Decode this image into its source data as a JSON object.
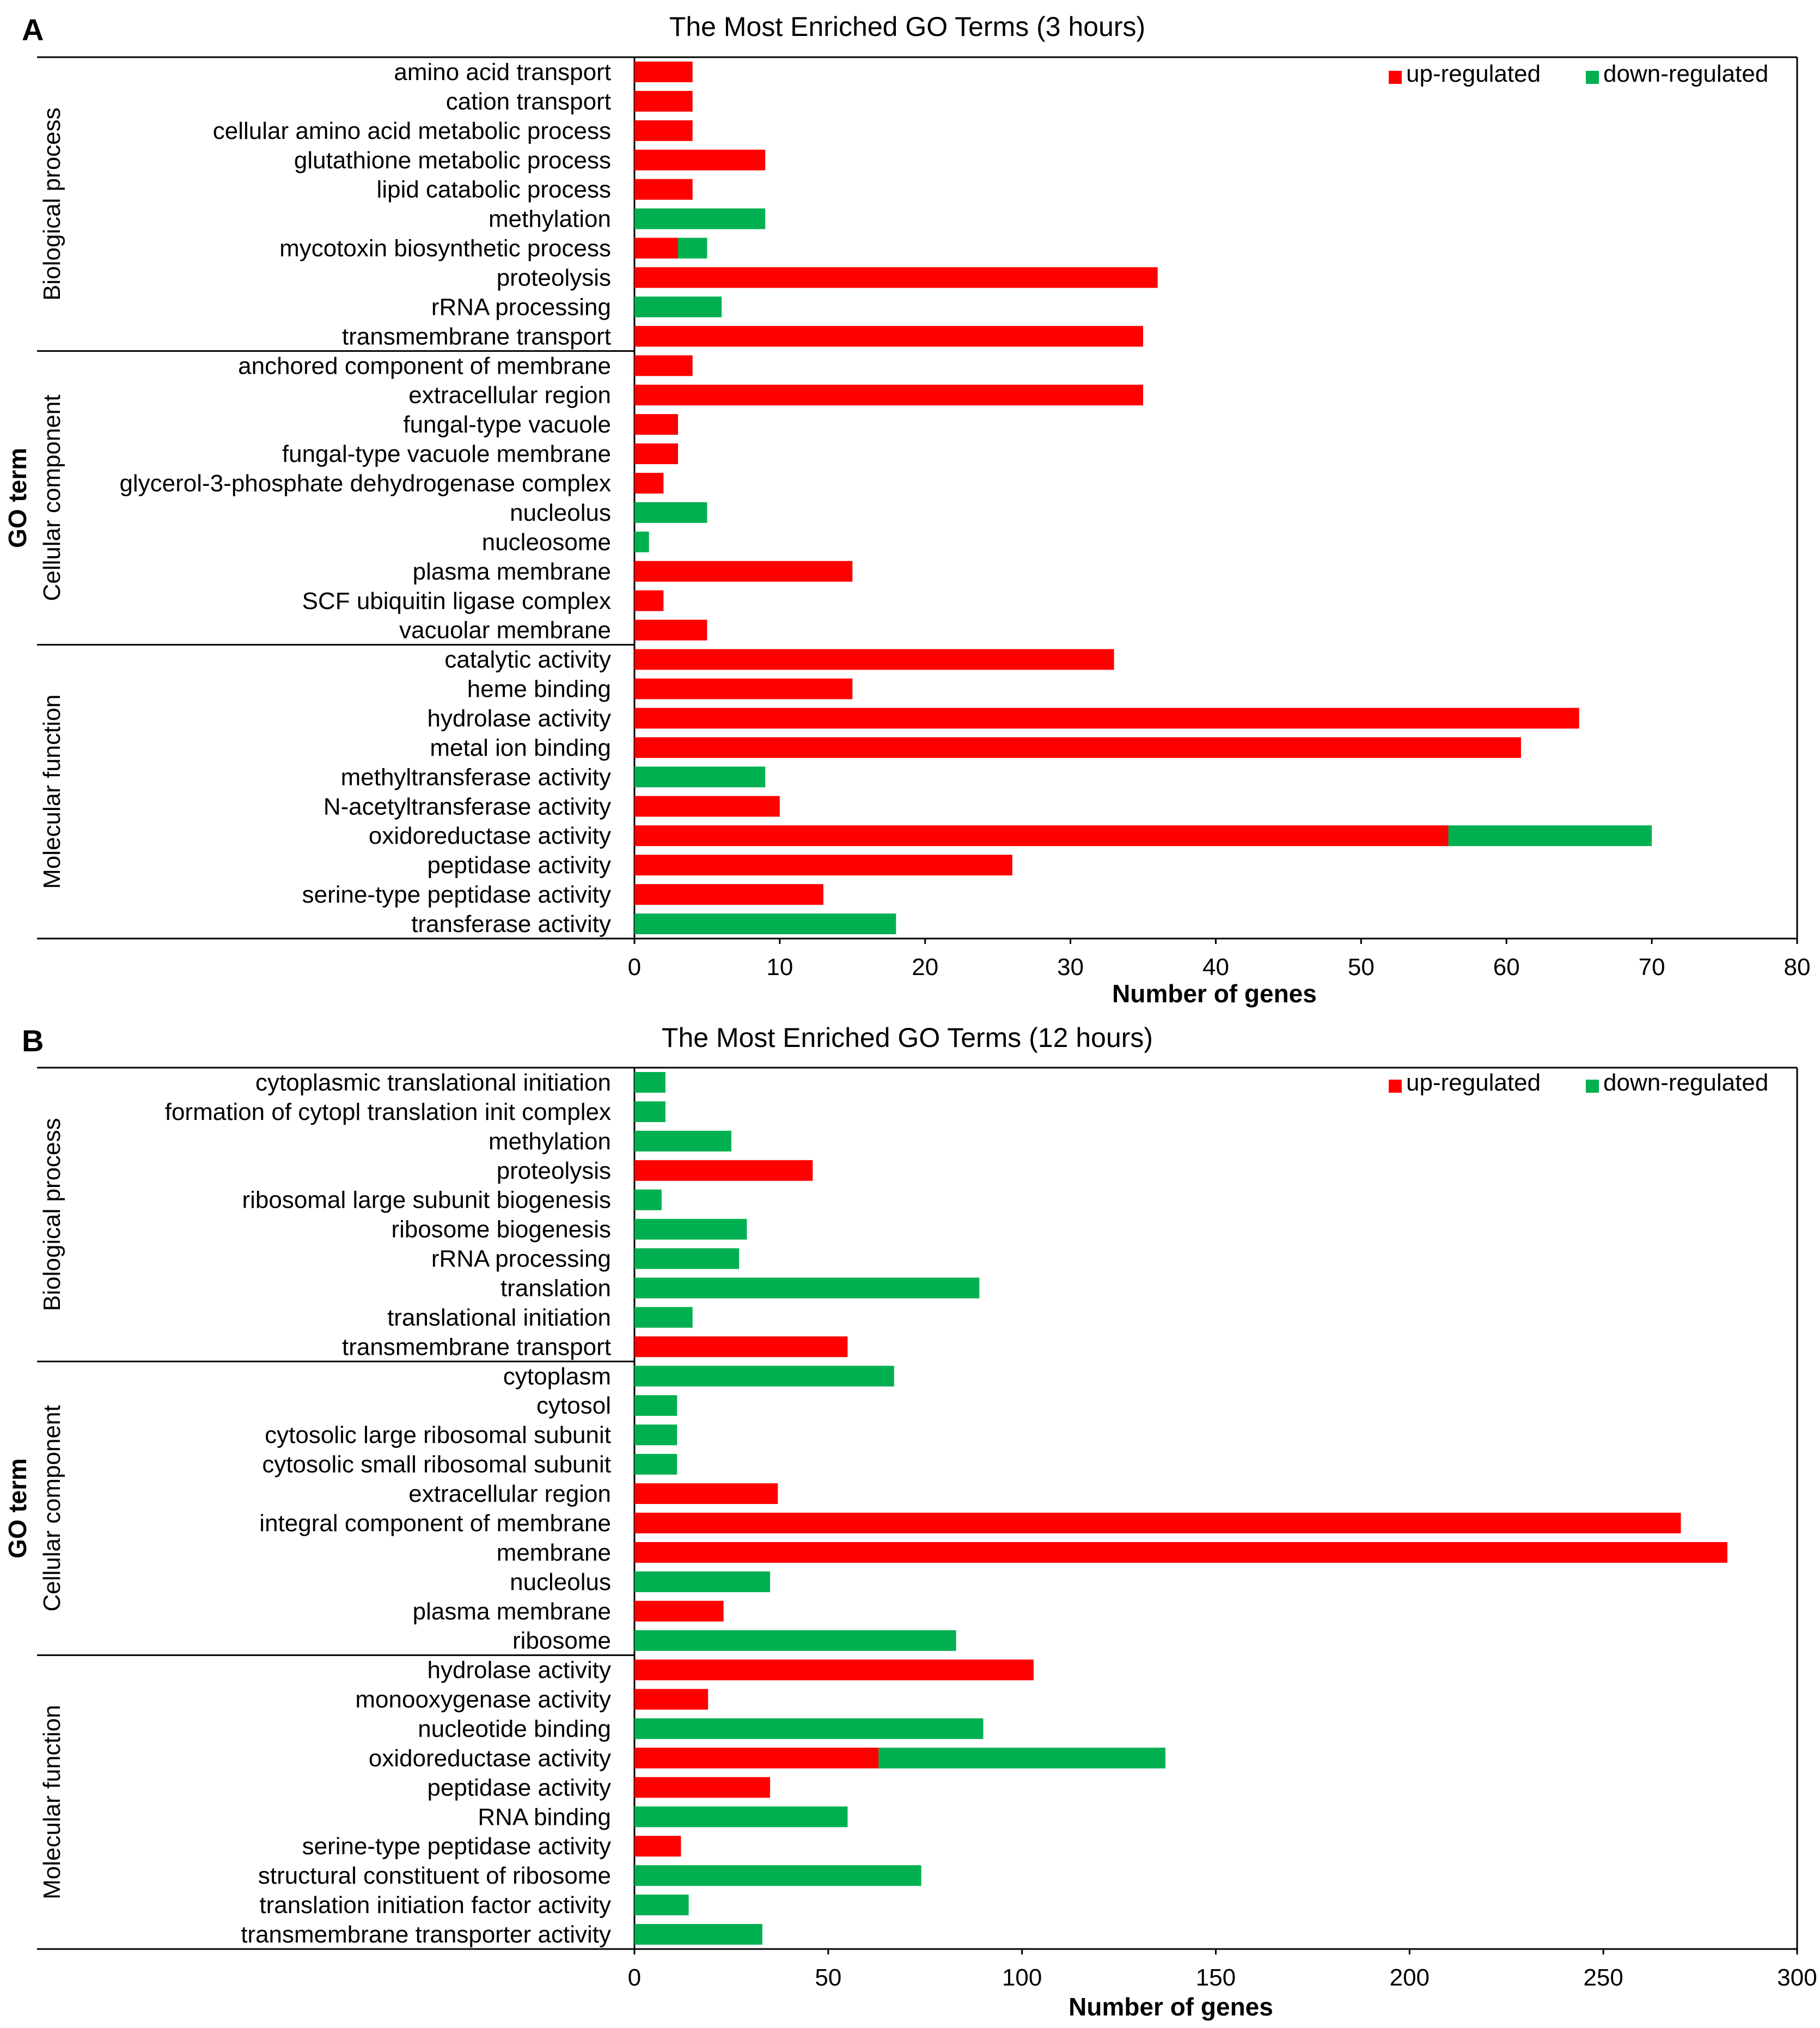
{
  "figure": {
    "colors": {
      "up": "#ff0000",
      "down": "#00b050",
      "axis": "#000000",
      "text": "#000000"
    }
  },
  "chart_data": [
    {
      "panel_label": "A",
      "type": "bar",
      "orientation": "horizontal",
      "stacked": true,
      "title": "The Most Enriched GO Terms (3 hours)",
      "xlabel": "Number of genes",
      "ylabel": "GO term",
      "xlim": [
        0,
        80
      ],
      "xticks": [
        0,
        10,
        20,
        30,
        40,
        50,
        60,
        70,
        80
      ],
      "grid": false,
      "legend_position": "top-right",
      "groups": [
        {
          "name": "Biological process",
          "count": 10
        },
        {
          "name": "Cellular component",
          "count": 10
        },
        {
          "name": "Molecular function",
          "count": 10
        }
      ],
      "categories": [
        "amino acid transport",
        "cation transport",
        "cellular amino acid metabolic process",
        "glutathione metabolic process",
        "lipid catabolic process",
        "methylation",
        "mycotoxin biosynthetic process",
        "proteolysis",
        "rRNA processing",
        "transmembrane transport",
        "anchored component of membrane",
        "extracellular region",
        "fungal-type vacuole",
        "fungal-type vacuole membrane",
        "glycerol-3-phosphate dehydrogenase complex",
        "nucleolus",
        "nucleosome",
        "plasma membrane",
        "SCF ubiquitin ligase complex",
        "vacuolar membrane",
        "catalytic activity",
        "heme binding",
        "hydrolase activity",
        "metal ion binding",
        "methyltransferase activity",
        "N-acetyltransferase activity",
        "oxidoreductase activity",
        "peptidase activity",
        "serine-type peptidase activity",
        "transferase activity"
      ],
      "series": [
        {
          "name": "up-regulated",
          "key": "up",
          "values": [
            4,
            4,
            4,
            9,
            4,
            0,
            3,
            36,
            0,
            35,
            4,
            35,
            3,
            3,
            2,
            0,
            0,
            15,
            2,
            5,
            33,
            15,
            65,
            61,
            0,
            10,
            56,
            26,
            13,
            0
          ]
        },
        {
          "name": "down-regulated",
          "key": "down",
          "values": [
            0,
            0,
            0,
            0,
            0,
            9,
            2,
            0,
            6,
            0,
            0,
            0,
            0,
            0,
            0,
            5,
            1,
            0,
            0,
            0,
            0,
            0,
            0,
            0,
            9,
            0,
            14,
            0,
            0,
            18
          ]
        }
      ]
    },
    {
      "panel_label": "B",
      "type": "bar",
      "orientation": "horizontal",
      "stacked": true,
      "title": "The Most Enriched GO Terms (12 hours)",
      "xlabel": "Number of genes",
      "ylabel": "GO term",
      "xlim": [
        0,
        300
      ],
      "xticks": [
        0,
        50,
        100,
        150,
        200,
        250,
        300
      ],
      "grid": false,
      "legend_position": "top-right",
      "groups": [
        {
          "name": "Biological process",
          "count": 10
        },
        {
          "name": "Cellular component",
          "count": 10
        },
        {
          "name": "Molecular function",
          "count": 10
        }
      ],
      "categories": [
        "cytoplasmic translational initiation",
        "formation of cytopl translation init complex",
        "methylation",
        "proteolysis",
        "ribosomal large subunit biogenesis",
        "ribosome biogenesis",
        "rRNA processing",
        "translation",
        "translational initiation",
        "transmembrane transport",
        "cytoplasm",
        "cytosol",
        "cytosolic large ribosomal subunit",
        "cytosolic small ribosomal subunit",
        "extracellular region",
        "integral component of membrane",
        "membrane",
        "nucleolus",
        "plasma membrane",
        "ribosome",
        "hydrolase activity",
        "monooxygenase activity",
        "nucleotide binding",
        "oxidoreductase activity",
        "peptidase activity",
        "RNA binding",
        "serine-type peptidase activity",
        "structural constituent of ribosome",
        "translation initiation factor activity",
        "transmembrane transporter activity"
      ],
      "series": [
        {
          "name": "up-regulated",
          "key": "up",
          "values": [
            0,
            0,
            0,
            46,
            0,
            0,
            0,
            0,
            0,
            55,
            0,
            0,
            0,
            0,
            37,
            270,
            282,
            0,
            23,
            0,
            103,
            19,
            0,
            63,
            35,
            0,
            12,
            0,
            0,
            0
          ]
        },
        {
          "name": "down-regulated",
          "key": "down",
          "values": [
            8,
            8,
            25,
            0,
            7,
            29,
            27,
            89,
            15,
            0,
            67,
            11,
            11,
            11,
            0,
            0,
            0,
            35,
            0,
            83,
            0,
            0,
            90,
            74,
            0,
            55,
            0,
            74,
            14,
            33
          ]
        }
      ]
    }
  ]
}
